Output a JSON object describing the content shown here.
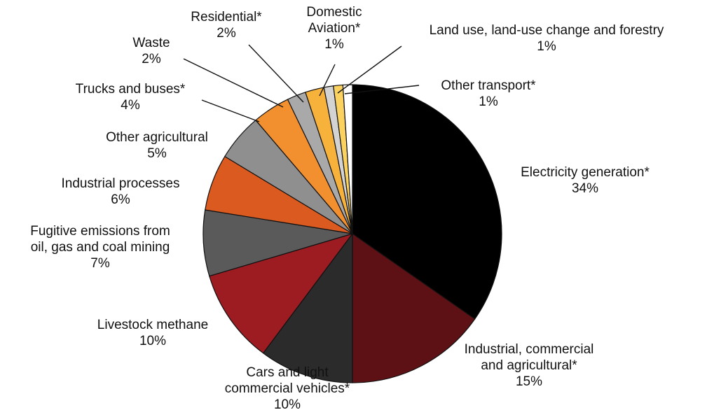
{
  "chart_data": {
    "type": "pie",
    "title": "",
    "slices": [
      {
        "name": "Electricity generation*",
        "value": 34,
        "label": "34%",
        "color": "#000000"
      },
      {
        "name": "Industrial, commercial and agricultural*",
        "value": 15,
        "label": "15%",
        "color": "#5e1115"
      },
      {
        "name": "Cars and light commercial vehicles*",
        "value": 10,
        "label": "10%",
        "color": "#2b2b2b"
      },
      {
        "name": "Livestock methane",
        "value": 10,
        "label": "10%",
        "color": "#9c1c22"
      },
      {
        "name": "Fugitive emissions from oil, gas and coal mining",
        "value": 7,
        "label": "7%",
        "color": "#5a5a5a"
      },
      {
        "name": "Industrial processes",
        "value": 6,
        "label": "6%",
        "color": "#db5a1f"
      },
      {
        "name": "Other agricultural",
        "value": 5,
        "label": "5%",
        "color": "#8f8f8f"
      },
      {
        "name": "Trucks and buses*",
        "value": 4,
        "label": "4%",
        "color": "#f28f2e"
      },
      {
        "name": "Waste",
        "value": 2,
        "label": "2%",
        "color": "#a9a9a9"
      },
      {
        "name": "Residential*",
        "value": 2,
        "label": "2%",
        "color": "#f6b23b"
      },
      {
        "name": "Domestic Aviation*",
        "value": 1,
        "label": "1%",
        "color": "#d3d3d3"
      },
      {
        "name": "Land use, land-use change and forestry",
        "value": 1,
        "label": "1%",
        "color": "#fbd25f"
      },
      {
        "name": "Other transport*",
        "value": 1,
        "label": "1%",
        "color": "#ffffff"
      }
    ]
  }
}
